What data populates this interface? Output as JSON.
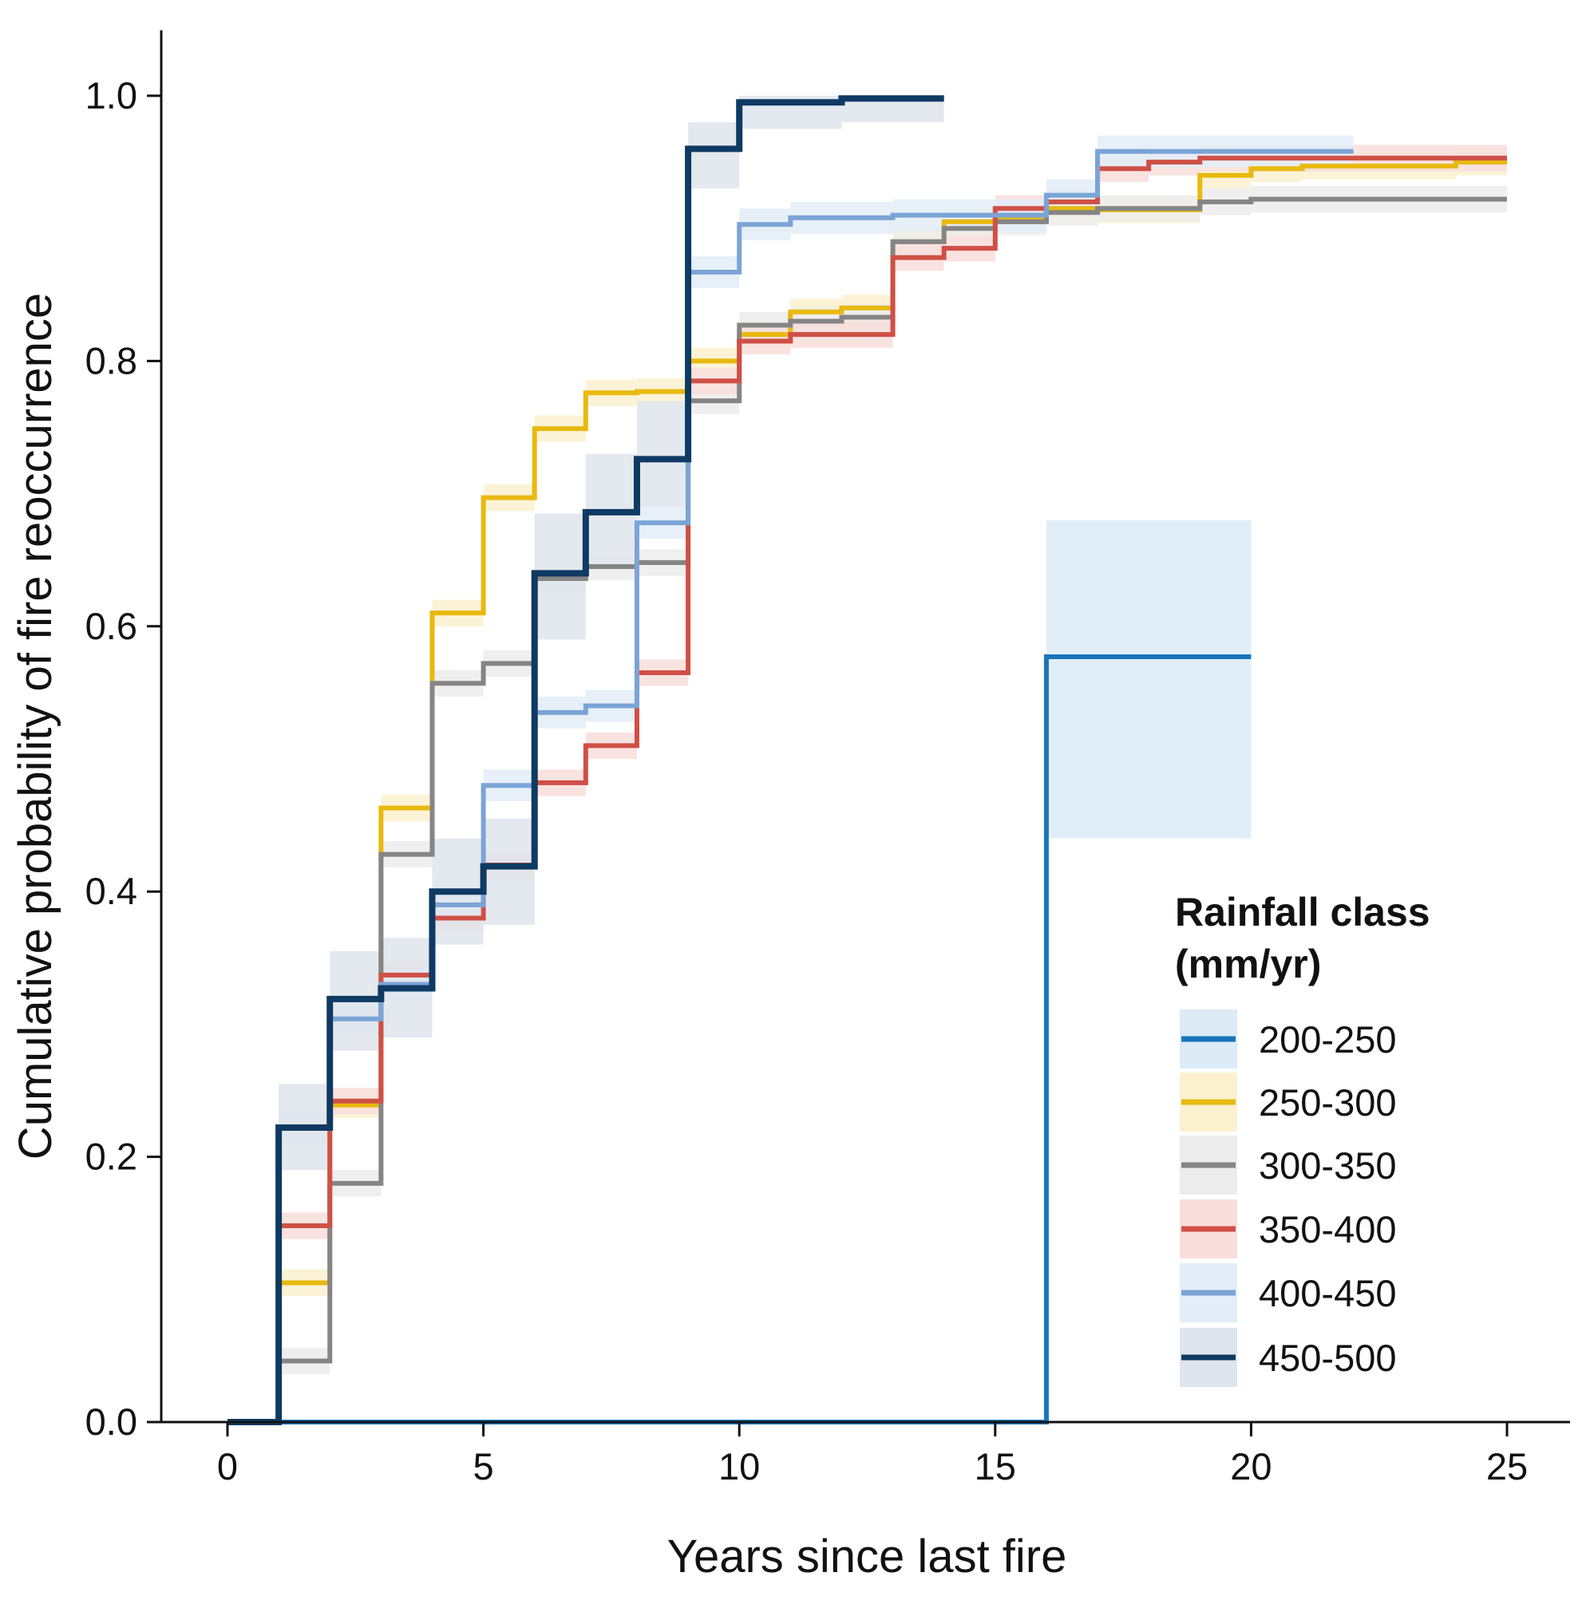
{
  "chart_data": {
    "type": "line",
    "step": true,
    "title": "",
    "xlabel": "Years since last fire",
    "ylabel": "Cumulative probability of fire reoccurrence",
    "xlim": [
      -1.3,
      26.3
    ],
    "ylim": [
      0,
      1.05
    ],
    "xticks": [
      0,
      5,
      10,
      15,
      20,
      25
    ],
    "yticks": [
      "0.0",
      "0.2",
      "0.4",
      "0.6",
      "0.8",
      "1.0"
    ],
    "grid": false,
    "legend": {
      "title_line1": "Rainfall class",
      "title_line2": "(mm/yr)",
      "placement": "bottom-right"
    },
    "series": [
      {
        "name": "200-250",
        "color": "#1a75bb",
        "band": "#dcebf6",
        "x": [
          0,
          16,
          20
        ],
        "y": [
          0,
          0.577,
          0.577
        ],
        "lower": [
          0,
          0.44,
          0.44
        ],
        "upper": [
          0,
          0.68,
          0.68
        ]
      },
      {
        "name": "250-300",
        "color": "#e8b90f",
        "band": "#fbf1cf",
        "x": [
          0,
          1,
          2,
          3,
          4,
          5,
          6,
          7,
          8,
          9,
          10,
          11,
          12,
          13,
          14,
          15,
          16,
          17,
          19,
          20,
          21,
          24,
          25
        ],
        "y": [
          0,
          0.105,
          0.239,
          0.463,
          0.61,
          0.697,
          0.749,
          0.776,
          0.777,
          0.8,
          0.82,
          0.837,
          0.84,
          0.89,
          0.905,
          0.908,
          0.915,
          0.914,
          0.94,
          0.945,
          0.947,
          0.95,
          0.95
        ],
        "ci_halfwidth": 0.01
      },
      {
        "name": "300-350",
        "color": "#858585",
        "band": "#ececec",
        "x": [
          0,
          1,
          2,
          3,
          4,
          5,
          6,
          7,
          8,
          9,
          10,
          11,
          12,
          13,
          14,
          15,
          16,
          17,
          19,
          20,
          25
        ],
        "y": [
          0,
          0.046,
          0.18,
          0.428,
          0.557,
          0.572,
          0.636,
          0.645,
          0.648,
          0.77,
          0.827,
          0.83,
          0.833,
          0.89,
          0.9,
          0.905,
          0.912,
          0.915,
          0.92,
          0.922,
          0.922
        ],
        "ci_halfwidth": 0.01
      },
      {
        "name": "350-400",
        "color": "#cf5046",
        "band": "#f8dedc",
        "x": [
          0,
          1,
          2,
          3,
          4,
          5,
          6,
          7,
          8,
          9,
          10,
          11,
          13,
          14,
          15,
          16,
          17,
          18,
          19,
          25
        ],
        "y": [
          0,
          0.148,
          0.242,
          0.337,
          0.38,
          0.42,
          0.482,
          0.51,
          0.565,
          0.785,
          0.815,
          0.82,
          0.878,
          0.885,
          0.915,
          0.92,
          0.945,
          0.95,
          0.953,
          0.953
        ],
        "ci_halfwidth": 0.01
      },
      {
        "name": "400-450",
        "color": "#7ba4d6",
        "band": "#e3edf8",
        "x": [
          0,
          1,
          2,
          3,
          4,
          5,
          6,
          7,
          8,
          9,
          10,
          11,
          13,
          16,
          17,
          22
        ],
        "y": [
          0,
          0.222,
          0.304,
          0.33,
          0.39,
          0.48,
          0.535,
          0.54,
          0.678,
          0.867,
          0.903,
          0.908,
          0.91,
          0.925,
          0.958,
          0.958
        ],
        "ci_halfwidth": 0.012
      },
      {
        "name": "450-500",
        "color": "#0e3a63",
        "band": "#dfe5ec",
        "x": [
          0,
          1,
          2,
          3,
          4,
          5,
          6,
          7,
          8,
          9,
          10,
          12,
          14
        ],
        "y": [
          0,
          0.222,
          0.319,
          0.327,
          0.4,
          0.419,
          0.64,
          0.686,
          0.726,
          0.96,
          0.995,
          0.998,
          0.998
        ],
        "lower": [
          0,
          0.19,
          0.28,
          0.29,
          0.36,
          0.375,
          0.59,
          0.645,
          0.69,
          0.93,
          0.975,
          0.98,
          0.98
        ],
        "upper": [
          0,
          0.255,
          0.355,
          0.365,
          0.44,
          0.455,
          0.685,
          0.73,
          0.77,
          0.98,
          1.0,
          1.0,
          1.0
        ]
      }
    ]
  }
}
